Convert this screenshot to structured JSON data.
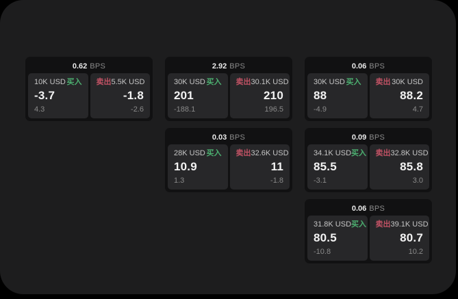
{
  "labels": {
    "bps": "BPS",
    "buy": "买入",
    "sell": "卖出"
  },
  "colors": {
    "buy_green": "#4caf70",
    "sell_red": "#c05264",
    "window_background": "#1d1d1e",
    "card_background": "#111112",
    "panel_background": "#272729"
  },
  "cards": [
    {
      "col": 1,
      "row": 1,
      "bps": "0.62",
      "buy": {
        "amount": "10K USD",
        "value": "-3.7",
        "delta": "4.3"
      },
      "sell": {
        "amount": "5.5K USD",
        "value": "-1.8",
        "delta": "-2.6"
      }
    },
    {
      "col": 2,
      "row": 1,
      "bps": "2.92",
      "buy": {
        "amount": "30K USD",
        "value": "201",
        "delta": "-188.1"
      },
      "sell": {
        "amount": "30.1K USD",
        "value": "210",
        "delta": "196.5"
      }
    },
    {
      "col": 3,
      "row": 1,
      "bps": "0.06",
      "buy": {
        "amount": "30K USD",
        "value": "88",
        "delta": "-4.9"
      },
      "sell": {
        "amount": "30K USD",
        "value": "88.2",
        "delta": "4.7"
      }
    },
    {
      "col": 2,
      "row": 2,
      "bps": "0.03",
      "buy": {
        "amount": "28K USD",
        "value": "10.9",
        "delta": "1.3"
      },
      "sell": {
        "amount": "32.6K USD",
        "value": "11",
        "delta": "-1.8"
      }
    },
    {
      "col": 3,
      "row": 2,
      "bps": "0.09",
      "buy": {
        "amount": "34.1K USD",
        "value": "85.5",
        "delta": "-3.1"
      },
      "sell": {
        "amount": "32.8K USD",
        "value": "85.8",
        "delta": "3.0"
      }
    },
    {
      "col": 3,
      "row": 3,
      "bps": "0.06",
      "buy": {
        "amount": "31.8K USD",
        "value": "80.5",
        "delta": "-10.8"
      },
      "sell": {
        "amount": "39.1K USD",
        "value": "80.7",
        "delta": "10.2"
      }
    }
  ]
}
